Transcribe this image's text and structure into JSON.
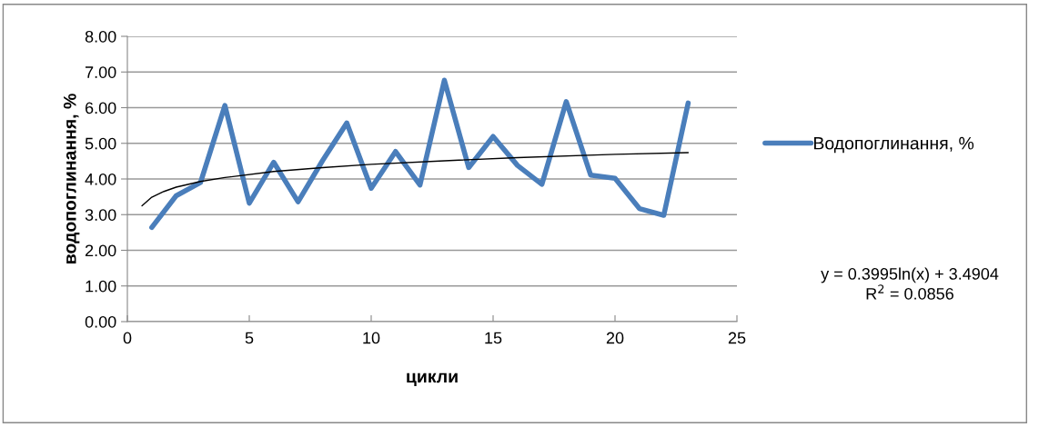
{
  "chart_data": {
    "type": "line",
    "xlabel": "цикли",
    "ylabel": "водопоглинання, %",
    "xlim": [
      0,
      25
    ],
    "xticks": [
      0,
      5,
      10,
      15,
      20,
      25
    ],
    "ylim": [
      0,
      8
    ],
    "yticks": [
      {
        "value": 0,
        "label": "0.00"
      },
      {
        "value": 1,
        "label": "1.00"
      },
      {
        "value": 2,
        "label": "2.00"
      },
      {
        "value": 3,
        "label": "3.00"
      },
      {
        "value": 4,
        "label": "4.00"
      },
      {
        "value": 5,
        "label": "5.00"
      },
      {
        "value": 6,
        "label": "6.00"
      },
      {
        "value": 7,
        "label": "7.00"
      },
      {
        "value": 8,
        "label": "8.00"
      }
    ],
    "grid": "y",
    "legend": "right",
    "marker": "none",
    "line_style": "solid",
    "series": [
      {
        "name": "Водопоглинання, %",
        "color": "#4a7ebb",
        "x": [
          1,
          2,
          3,
          4,
          5,
          6,
          7,
          8,
          9,
          10,
          11,
          12,
          13,
          14,
          15,
          16,
          17,
          18,
          19,
          20,
          21,
          22,
          23
        ],
        "values": [
          2.64,
          3.53,
          3.9,
          6.06,
          3.32,
          4.47,
          3.36,
          4.51,
          5.57,
          3.74,
          4.77,
          3.83,
          6.77,
          4.32,
          5.19,
          4.38,
          3.85,
          6.17,
          4.11,
          4.02,
          3.17,
          2.98,
          6.13
        ]
      },
      {
        "type": "line",
        "color": "#000000",
        "x": [
          0.6,
          1,
          1.5,
          2,
          3,
          4,
          6,
          8,
          10,
          13,
          16,
          20,
          23
        ],
        "values": [
          3.25,
          3.49,
          3.65,
          3.77,
          3.93,
          4.04,
          4.21,
          4.32,
          4.41,
          4.51,
          4.6,
          4.69,
          4.74
        ]
      }
    ],
    "annotations": [
      "y = 0.3995ln(x) + 3.4904\nR$^{2}$ = 0.0856"
    ]
  }
}
